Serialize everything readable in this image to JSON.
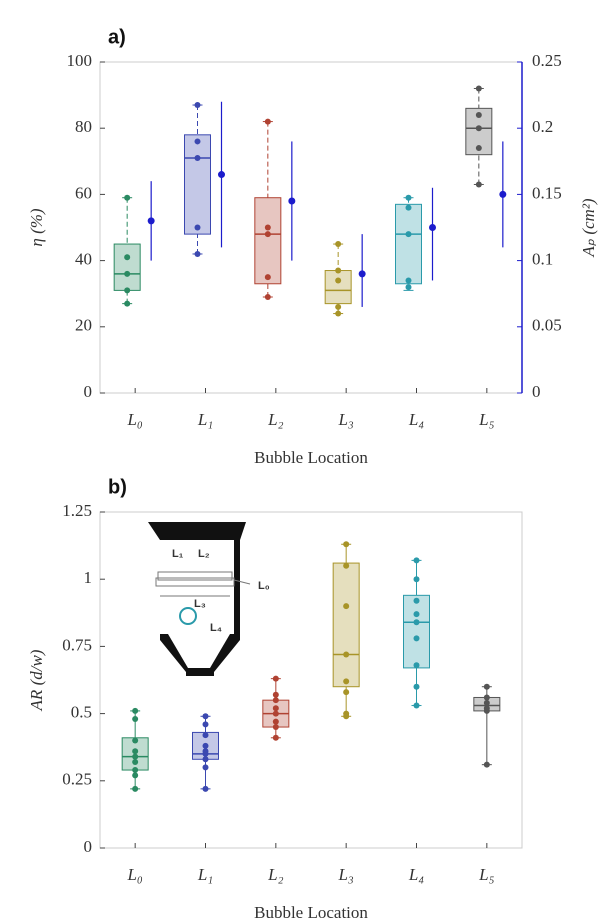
{
  "chart_data": [
    {
      "type": "box",
      "panel_label": "a)",
      "xlabel": "Bubble Location",
      "ylabel": "η (%)",
      "y2label": "Aₚ (cm²)",
      "categories": [
        "L₀",
        "L₁",
        "L₂",
        "L₃",
        "L₄",
        "L₅"
      ],
      "ylim": [
        0,
        100
      ],
      "yticks": [
        0,
        20,
        40,
        60,
        80,
        100
      ],
      "y2lim": [
        0,
        0.25
      ],
      "y2ticks": [
        0,
        0.05,
        0.1,
        0.15,
        0.2,
        0.25
      ],
      "boxes": [
        {
          "color": "#2a8a62",
          "min": 27,
          "q1": 31,
          "median": 36,
          "q3": 45,
          "max": 59,
          "points": [
            59,
            41,
            36,
            31,
            27
          ]
        },
        {
          "color": "#3b48b0",
          "min": 42,
          "q1": 48,
          "median": 71,
          "q3": 78,
          "max": 87,
          "points": [
            87,
            76,
            71,
            50,
            42
          ]
        },
        {
          "color": "#b04232",
          "min": 29,
          "q1": 33,
          "median": 48,
          "q3": 59,
          "max": 82,
          "points": [
            82,
            50,
            48,
            35,
            29
          ]
        },
        {
          "color": "#a89428",
          "min": 24,
          "q1": 27,
          "median": 31,
          "q3": 37,
          "max": 45,
          "points": [
            45,
            37,
            34,
            26,
            24
          ]
        },
        {
          "color": "#2a9aaa",
          "min": 31,
          "q1": 33,
          "median": 48,
          "q3": 57,
          "max": 59,
          "points": [
            59,
            56,
            48,
            34,
            32
          ]
        },
        {
          "color": "#555555",
          "min": 63,
          "q1": 72,
          "median": 80,
          "q3": 86,
          "max": 92,
          "points": [
            92,
            84,
            80,
            74,
            63
          ]
        }
      ],
      "series2": {
        "axis": "y2",
        "color": "#1c1ccc",
        "values": [
          0.13,
          0.165,
          0.145,
          0.09,
          0.125,
          0.15
        ],
        "lows": [
          0.1,
          0.11,
          0.1,
          0.065,
          0.085,
          0.11
        ],
        "highs": [
          0.16,
          0.22,
          0.19,
          0.12,
          0.155,
          0.19
        ]
      }
    },
    {
      "type": "box",
      "panel_label": "b)",
      "xlabel": "Bubble Location",
      "ylabel": "AR (d/w)",
      "categories": [
        "L₀",
        "L₁",
        "L₂",
        "L₃",
        "L₄",
        "L₅"
      ],
      "ylim": [
        0,
        1.25
      ],
      "yticks": [
        0,
        0.25,
        0.5,
        0.75,
        1,
        1.25
      ],
      "boxes": [
        {
          "color": "#2a8a62",
          "min": 0.22,
          "q1": 0.29,
          "median": 0.34,
          "q3": 0.41,
          "max": 0.51,
          "points": [
            0.51,
            0.48,
            0.4,
            0.36,
            0.34,
            0.32,
            0.29,
            0.27,
            0.22
          ]
        },
        {
          "color": "#3b48b0",
          "min": 0.22,
          "q1": 0.33,
          "median": 0.35,
          "q3": 0.43,
          "max": 0.49,
          "points": [
            0.49,
            0.46,
            0.42,
            0.38,
            0.36,
            0.35,
            0.33,
            0.3,
            0.22
          ]
        },
        {
          "color": "#b04232",
          "min": 0.41,
          "q1": 0.45,
          "median": 0.5,
          "q3": 0.55,
          "max": 0.63,
          "points": [
            0.63,
            0.57,
            0.55,
            0.52,
            0.5,
            0.47,
            0.45,
            0.41
          ]
        },
        {
          "color": "#a89428",
          "min": 0.49,
          "q1": 0.6,
          "median": 0.72,
          "q3": 1.06,
          "max": 1.13,
          "points": [
            1.13,
            1.05,
            0.9,
            0.72,
            0.62,
            0.58,
            0.5,
            0.49
          ]
        },
        {
          "color": "#2a9aaa",
          "min": 0.53,
          "q1": 0.67,
          "median": 0.84,
          "q3": 0.94,
          "max": 1.07,
          "points": [
            1.07,
            1.0,
            0.92,
            0.87,
            0.84,
            0.78,
            0.68,
            0.6,
            0.53
          ]
        },
        {
          "color": "#555555",
          "min": 0.31,
          "q1": 0.51,
          "median": 0.53,
          "q3": 0.56,
          "max": 0.6,
          "points": [
            0.6,
            0.56,
            0.54,
            0.52,
            0.51,
            0.31
          ]
        }
      ],
      "inset_labels": [
        "L₁",
        "L₂",
        "L₀",
        "L₃",
        "L₄"
      ]
    }
  ]
}
